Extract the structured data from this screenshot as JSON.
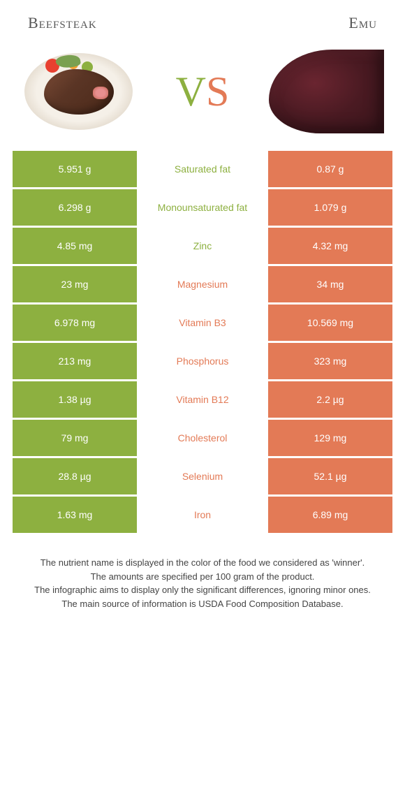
{
  "colors": {
    "green": "#8db040",
    "orange": "#e37a56",
    "white": "#ffffff"
  },
  "foodA": {
    "label": "Beefsteak"
  },
  "foodB": {
    "label": "Emu"
  },
  "vs": {
    "v": "V",
    "s": "S"
  },
  "rows": [
    {
      "left": "5.951 g",
      "name": "Saturated fat",
      "right": "0.87 g",
      "winner": "left"
    },
    {
      "left": "6.298 g",
      "name": "Monounsaturated fat",
      "right": "1.079 g",
      "winner": "left"
    },
    {
      "left": "4.85 mg",
      "name": "Zinc",
      "right": "4.32 mg",
      "winner": "left"
    },
    {
      "left": "23 mg",
      "name": "Magnesium",
      "right": "34 mg",
      "winner": "right"
    },
    {
      "left": "6.978 mg",
      "name": "Vitamin B3",
      "right": "10.569 mg",
      "winner": "right"
    },
    {
      "left": "213 mg",
      "name": "Phosphorus",
      "right": "323 mg",
      "winner": "right"
    },
    {
      "left": "1.38 µg",
      "name": "Vitamin B12",
      "right": "2.2 µg",
      "winner": "right"
    },
    {
      "left": "79 mg",
      "name": "Cholesterol",
      "right": "129 mg",
      "winner": "right"
    },
    {
      "left": "28.8 µg",
      "name": "Selenium",
      "right": "52.1 µg",
      "winner": "right"
    },
    {
      "left": "1.63 mg",
      "name": "Iron",
      "right": "6.89 mg",
      "winner": "right"
    }
  ],
  "footer": {
    "l1": "The nutrient name is displayed in the color of the food we considered as 'winner'.",
    "l2": "The amounts are specified per 100 gram of the product.",
    "l3": "The infographic aims to display only the significant differences, ignoring minor ones.",
    "l4": "The main source of information is USDA Food Composition Database."
  }
}
